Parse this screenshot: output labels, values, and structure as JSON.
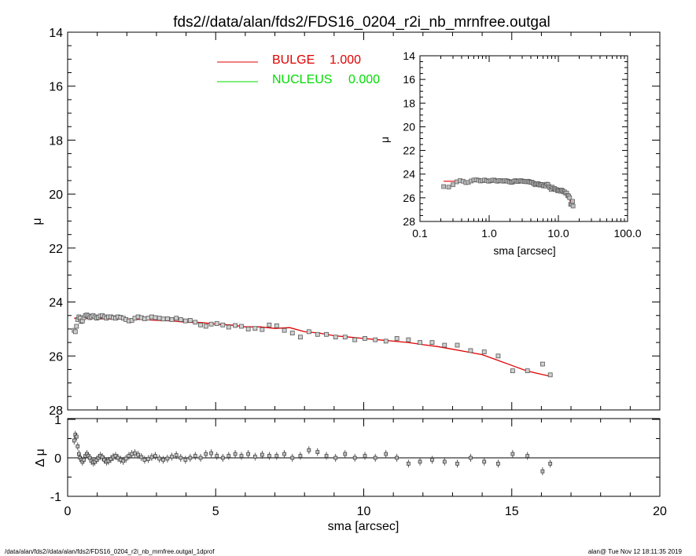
{
  "chart_data": {
    "title": "fds2//data/alan/fds2/FDS16_0204_r2i_nb_mrnfree.outgal",
    "footer_left": "/data/alan/fds2//data/alan/fds2/FDS16_0204_r2i_nb_mrnfree.outgal_1dprof",
    "footer_right": "alan@  Tue Nov 12 18:11:35 2019",
    "colors": {
      "bulge": "#e00000",
      "nucleus": "#00dd00",
      "data": "#808080",
      "axis": "#000000"
    },
    "main": {
      "type": "scatter",
      "ylabel": "μ",
      "xlim": [
        0,
        20
      ],
      "ylim": [
        28,
        14
      ],
      "y_ticks": [
        "14",
        "16",
        "18",
        "20",
        "22",
        "24",
        "26",
        "28"
      ],
      "legend": [
        {
          "name": "BULGE",
          "value": "1.000",
          "color": "#e00000"
        },
        {
          "name": "NUCLEUS",
          "value": "0.000",
          "color": "#00dd00"
        }
      ],
      "data_points": {
        "x": [
          0.22,
          0.26,
          0.3,
          0.34,
          0.38,
          0.42,
          0.46,
          0.5,
          0.55,
          0.6,
          0.65,
          0.7,
          0.75,
          0.8,
          0.86,
          0.92,
          0.98,
          1.04,
          1.1,
          1.17,
          1.24,
          1.31,
          1.38,
          1.46,
          1.54,
          1.62,
          1.7,
          1.79,
          1.88,
          1.97,
          2.07,
          2.17,
          2.27,
          2.38,
          2.49,
          2.6,
          2.72,
          2.84,
          2.96,
          3.1,
          3.23,
          3.37,
          3.52,
          3.67,
          3.82,
          3.98,
          4.14,
          4.31,
          4.49,
          4.67,
          4.85,
          5.04,
          5.24,
          5.44,
          5.66,
          5.87,
          6.1,
          6.33,
          6.57,
          6.81,
          7.06,
          7.32,
          7.59,
          7.86,
          8.15,
          8.44,
          8.74,
          9.05,
          9.37,
          9.7,
          10.04,
          10.39,
          10.75,
          11.12,
          11.51,
          11.9,
          12.31,
          12.73,
          13.16,
          13.61,
          14.07,
          14.54,
          15.03,
          15.53,
          16.04,
          16.3
        ],
        "y": [
          25.05,
          25.1,
          24.9,
          24.65,
          24.55,
          24.6,
          24.72,
          24.7,
          24.58,
          24.5,
          24.48,
          24.52,
          24.58,
          24.55,
          24.5,
          24.55,
          24.6,
          24.57,
          24.52,
          24.5,
          24.55,
          24.6,
          24.55,
          24.55,
          24.58,
          24.6,
          24.55,
          24.57,
          24.6,
          24.65,
          24.7,
          24.68,
          24.6,
          24.55,
          24.58,
          24.62,
          24.6,
          24.55,
          24.58,
          24.6,
          24.63,
          24.62,
          24.65,
          24.6,
          24.65,
          24.7,
          24.68,
          24.75,
          24.85,
          24.9,
          24.82,
          24.8,
          24.85,
          24.93,
          24.87,
          24.9,
          25.0,
          24.98,
          25.02,
          24.85,
          24.88,
          25.05,
          25.15,
          25.3,
          25.1,
          25.2,
          25.2,
          25.3,
          25.3,
          25.4,
          25.35,
          25.4,
          25.45,
          25.35,
          25.4,
          25.5,
          25.5,
          25.6,
          25.6,
          25.8,
          25.85,
          26.0,
          26.55,
          26.55,
          26.3,
          26.7
        ]
      },
      "bulge_model": {
        "x": [
          0.22,
          0.5,
          1.0,
          1.5,
          2.0,
          2.5,
          3.0,
          3.5,
          4.0,
          4.5,
          5.0,
          5.5,
          6.0,
          6.5,
          7.0,
          7.5,
          8.0,
          8.5,
          9.0,
          9.5,
          10.0,
          10.5,
          11.0,
          11.5,
          12.0,
          12.5,
          13.0,
          13.5,
          14.0,
          14.5,
          15.0,
          15.5,
          16.0,
          16.3
        ],
        "y": [
          24.6,
          24.6,
          24.62,
          24.63,
          24.63,
          24.65,
          24.68,
          24.7,
          24.75,
          24.76,
          24.82,
          24.85,
          24.92,
          24.92,
          24.98,
          24.95,
          25.1,
          25.15,
          25.25,
          25.3,
          25.35,
          25.4,
          25.45,
          25.5,
          25.58,
          25.65,
          25.75,
          25.85,
          25.95,
          26.15,
          26.35,
          26.55,
          26.68,
          26.75
        ]
      }
    },
    "residual": {
      "type": "scatter",
      "xlabel": "sma [arcsec]",
      "ylabel": "Δ μ",
      "xlim": [
        0,
        20
      ],
      "ylim": [
        -1.1,
        1.1
      ],
      "x_ticks": [
        "0",
        "5",
        "10",
        "15",
        "20"
      ],
      "y_ticks": [
        "1",
        "0",
        "-1"
      ],
      "x": [
        0.22,
        0.26,
        0.3,
        0.34,
        0.38,
        0.42,
        0.46,
        0.5,
        0.55,
        0.6,
        0.65,
        0.7,
        0.75,
        0.8,
        0.86,
        0.92,
        0.98,
        1.04,
        1.1,
        1.17,
        1.24,
        1.31,
        1.38,
        1.46,
        1.54,
        1.62,
        1.7,
        1.79,
        1.88,
        1.97,
        2.07,
        2.17,
        2.27,
        2.38,
        2.49,
        2.6,
        2.72,
        2.84,
        2.96,
        3.1,
        3.23,
        3.37,
        3.52,
        3.67,
        3.82,
        3.98,
        4.14,
        4.31,
        4.49,
        4.67,
        4.85,
        5.04,
        5.24,
        5.44,
        5.66,
        5.87,
        6.1,
        6.33,
        6.57,
        6.81,
        7.06,
        7.32,
        7.59,
        7.86,
        8.15,
        8.44,
        8.74,
        9.05,
        9.37,
        9.7,
        10.04,
        10.39,
        10.75,
        11.12,
        11.51,
        11.9,
        12.31,
        12.73,
        13.16,
        13.61,
        14.07,
        14.54,
        15.03,
        15.53,
        16.04,
        16.3
      ],
      "y": [
        0.45,
        0.6,
        0.55,
        0.3,
        0.1,
        0.0,
        -0.05,
        -0.1,
        -0.05,
        0.05,
        0.1,
        0.05,
        0.0,
        -0.08,
        -0.12,
        -0.1,
        -0.05,
        0.0,
        0.05,
        0.02,
        -0.05,
        -0.1,
        -0.08,
        -0.03,
        0.02,
        0.05,
        0.0,
        -0.05,
        -0.08,
        -0.02,
        0.05,
        0.1,
        0.12,
        0.08,
        0.02,
        -0.05,
        -0.03,
        0.02,
        0.05,
        -0.02,
        -0.05,
        -0.02,
        0.03,
        0.07,
        0.0,
        -0.05,
        0.0,
        0.05,
        0.0,
        0.1,
        0.12,
        0.05,
        0.0,
        0.05,
        0.1,
        0.05,
        0.1,
        0.03,
        0.08,
        0.05,
        0.05,
        0.1,
        0.0,
        0.05,
        0.2,
        0.15,
        0.05,
        0.0,
        0.1,
        0.0,
        0.05,
        0.0,
        0.1,
        0.0,
        -0.15,
        -0.1,
        -0.05,
        -0.1,
        -0.15,
        0.0,
        -0.1,
        -0.15,
        0.1,
        0.05,
        -0.35,
        -0.15
      ]
    },
    "inset": {
      "type": "scatter",
      "xlabel": "sma [arcsec]",
      "ylabel": "μ",
      "x_scale": "log",
      "xlim": [
        0.1,
        100
      ],
      "ylim": [
        28,
        14
      ],
      "x_ticks": [
        "0.1",
        "1.0",
        "10.0",
        "100.0"
      ],
      "y_ticks": [
        "14",
        "16",
        "18",
        "20",
        "22",
        "24",
        "26",
        "28"
      ]
    }
  }
}
